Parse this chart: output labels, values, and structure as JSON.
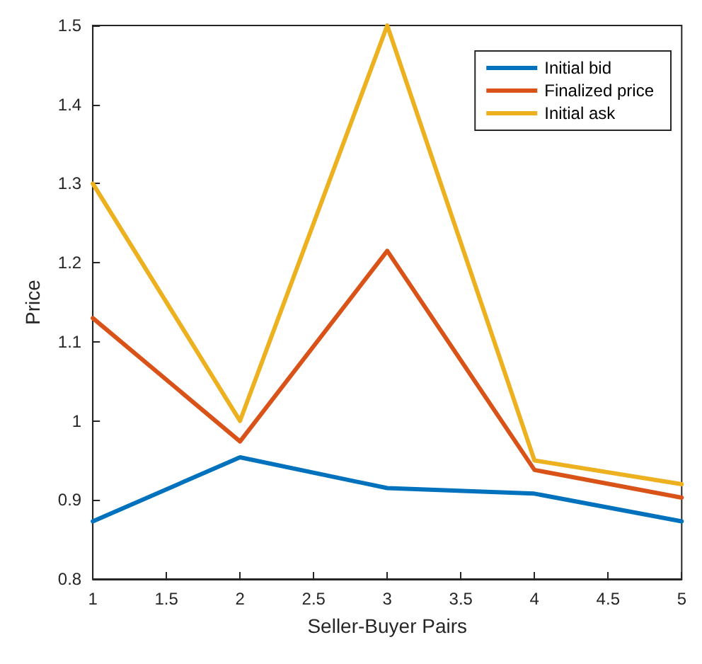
{
  "chart_data": {
    "type": "line",
    "xlabel": "Seller-Buyer Pairs",
    "ylabel": "Price",
    "x": [
      1,
      2,
      3,
      4,
      5
    ],
    "series": [
      {
        "name": "Initial bid",
        "color": "#0072bd",
        "values": [
          0.873,
          0.954,
          0.915,
          0.908,
          0.873
        ]
      },
      {
        "name": "Finalized price",
        "color": "#d95319",
        "values": [
          1.13,
          0.974,
          1.215,
          0.938,
          0.903
        ]
      },
      {
        "name": "Initial ask",
        "color": "#edb120",
        "values": [
          1.3,
          1.0,
          1.5,
          0.95,
          0.92
        ]
      }
    ],
    "xlim": [
      1,
      5
    ],
    "xticks": [
      1,
      1.5,
      2,
      2.5,
      3,
      3.5,
      4,
      4.5,
      5
    ],
    "ylim": [
      0.8,
      1.5
    ],
    "yticks": [
      0.8,
      0.9,
      1,
      1.1,
      1.2,
      1.3,
      1.4,
      1.5
    ],
    "grid": false,
    "legend": "top right",
    "marker": "none",
    "line_style": "solid"
  }
}
